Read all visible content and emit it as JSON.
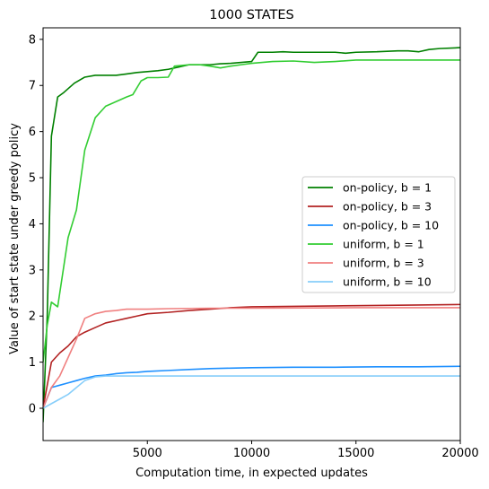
{
  "chart_data": {
    "type": "line",
    "title": "1000 STATES",
    "xlabel": "Computation time, in expected updates",
    "ylabel": "Value of start state under greedy policy",
    "xlim": [
      0,
      20000
    ],
    "ylim": [
      -0.7,
      8.25
    ],
    "xticks": [
      5000,
      10000,
      15000,
      20000
    ],
    "yticks": [
      0,
      1,
      2,
      3,
      4,
      5,
      6,
      7,
      8
    ],
    "grid": false,
    "legend_position": "center-right",
    "series": [
      {
        "name": "on-policy, b = 1",
        "color": "#008000",
        "points": [
          [
            0,
            -0.3
          ],
          [
            200,
            2.0
          ],
          [
            400,
            5.9
          ],
          [
            700,
            6.75
          ],
          [
            1000,
            6.85
          ],
          [
            1500,
            7.05
          ],
          [
            2000,
            7.18
          ],
          [
            2500,
            7.22
          ],
          [
            3000,
            7.22
          ],
          [
            3500,
            7.22
          ],
          [
            4000,
            7.25
          ],
          [
            4500,
            7.28
          ],
          [
            5000,
            7.3
          ],
          [
            5500,
            7.32
          ],
          [
            6000,
            7.35
          ],
          [
            6500,
            7.4
          ],
          [
            7000,
            7.45
          ],
          [
            7500,
            7.45
          ],
          [
            8000,
            7.45
          ],
          [
            8500,
            7.47
          ],
          [
            9000,
            7.48
          ],
          [
            9500,
            7.5
          ],
          [
            10000,
            7.52
          ],
          [
            10300,
            7.72
          ],
          [
            11000,
            7.72
          ],
          [
            11500,
            7.73
          ],
          [
            12000,
            7.72
          ],
          [
            13000,
            7.72
          ],
          [
            14000,
            7.72
          ],
          [
            14500,
            7.7
          ],
          [
            15000,
            7.72
          ],
          [
            16000,
            7.73
          ],
          [
            17000,
            7.75
          ],
          [
            17500,
            7.75
          ],
          [
            18000,
            7.73
          ],
          [
            18500,
            7.78
          ],
          [
            19000,
            7.8
          ],
          [
            20000,
            7.82
          ]
        ]
      },
      {
        "name": "on-policy, b = 3",
        "color": "#b22222",
        "points": [
          [
            0,
            0.0
          ],
          [
            400,
            1.0
          ],
          [
            800,
            1.2
          ],
          [
            1200,
            1.35
          ],
          [
            1600,
            1.55
          ],
          [
            2000,
            1.65
          ],
          [
            2500,
            1.75
          ],
          [
            3000,
            1.85
          ],
          [
            3500,
            1.9
          ],
          [
            4000,
            1.95
          ],
          [
            4500,
            2.0
          ],
          [
            5000,
            2.05
          ],
          [
            6000,
            2.08
          ],
          [
            7000,
            2.12
          ],
          [
            8000,
            2.15
          ],
          [
            9000,
            2.18
          ],
          [
            10000,
            2.2
          ],
          [
            12000,
            2.21
          ],
          [
            14000,
            2.22
          ],
          [
            16000,
            2.23
          ],
          [
            18000,
            2.24
          ],
          [
            20000,
            2.25
          ]
        ]
      },
      {
        "name": "on-policy, b = 10",
        "color": "#1e90ff",
        "points": [
          [
            0,
            0.0
          ],
          [
            400,
            0.45
          ],
          [
            800,
            0.5
          ],
          [
            1200,
            0.55
          ],
          [
            1600,
            0.6
          ],
          [
            2000,
            0.65
          ],
          [
            2500,
            0.7
          ],
          [
            3000,
            0.72
          ],
          [
            3500,
            0.75
          ],
          [
            4000,
            0.77
          ],
          [
            4500,
            0.78
          ],
          [
            5000,
            0.8
          ],
          [
            6000,
            0.82
          ],
          [
            7000,
            0.84
          ],
          [
            8000,
            0.86
          ],
          [
            9000,
            0.87
          ],
          [
            10000,
            0.88
          ],
          [
            12000,
            0.89
          ],
          [
            14000,
            0.89
          ],
          [
            16000,
            0.9
          ],
          [
            18000,
            0.9
          ],
          [
            20000,
            0.91
          ]
        ]
      },
      {
        "name": "uniform, b = 1",
        "color": "#32cd32",
        "points": [
          [
            0,
            1.0
          ],
          [
            200,
            1.8
          ],
          [
            400,
            2.3
          ],
          [
            700,
            2.2
          ],
          [
            1200,
            3.7
          ],
          [
            1600,
            4.3
          ],
          [
            2000,
            5.6
          ],
          [
            2500,
            6.3
          ],
          [
            3000,
            6.55
          ],
          [
            3500,
            6.65
          ],
          [
            4000,
            6.75
          ],
          [
            4300,
            6.8
          ],
          [
            4700,
            7.1
          ],
          [
            5000,
            7.17
          ],
          [
            5500,
            7.17
          ],
          [
            6000,
            7.18
          ],
          [
            6300,
            7.42
          ],
          [
            7000,
            7.45
          ],
          [
            7500,
            7.45
          ],
          [
            8000,
            7.42
          ],
          [
            8500,
            7.38
          ],
          [
            9000,
            7.42
          ],
          [
            9500,
            7.45
          ],
          [
            10000,
            7.48
          ],
          [
            11000,
            7.52
          ],
          [
            12000,
            7.53
          ],
          [
            13000,
            7.5
          ],
          [
            14000,
            7.52
          ],
          [
            15000,
            7.55
          ],
          [
            17000,
            7.55
          ],
          [
            20000,
            7.55
          ]
        ]
      },
      {
        "name": "uniform, b = 3",
        "color": "#f08080",
        "points": [
          [
            0,
            0.0
          ],
          [
            400,
            0.45
          ],
          [
            800,
            0.7
          ],
          [
            1200,
            1.1
          ],
          [
            1600,
            1.5
          ],
          [
            2000,
            1.95
          ],
          [
            2500,
            2.05
          ],
          [
            3000,
            2.1
          ],
          [
            3500,
            2.12
          ],
          [
            4000,
            2.15
          ],
          [
            5000,
            2.15
          ],
          [
            6000,
            2.16
          ],
          [
            8000,
            2.17
          ],
          [
            10000,
            2.17
          ],
          [
            15000,
            2.18
          ],
          [
            20000,
            2.18
          ]
        ]
      },
      {
        "name": "uniform, b = 10",
        "color": "#87cefa",
        "points": [
          [
            0,
            0.0
          ],
          [
            400,
            0.1
          ],
          [
            800,
            0.2
          ],
          [
            1200,
            0.3
          ],
          [
            1600,
            0.45
          ],
          [
            2000,
            0.6
          ],
          [
            2500,
            0.68
          ],
          [
            3000,
            0.7
          ],
          [
            4000,
            0.7
          ],
          [
            6000,
            0.7
          ],
          [
            10000,
            0.7
          ],
          [
            15000,
            0.7
          ],
          [
            20000,
            0.7
          ]
        ]
      }
    ]
  }
}
